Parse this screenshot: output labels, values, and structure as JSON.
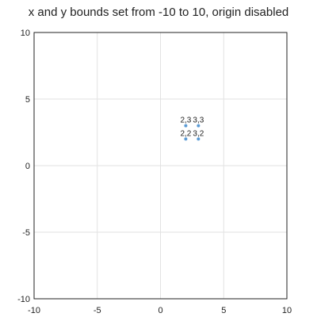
{
  "chart_data": {
    "type": "scatter",
    "title": "x and y bounds set from -10 to 10, origin disabled",
    "xlabel": "",
    "ylabel": "",
    "xlim": [
      -10,
      10
    ],
    "ylim": [
      -10,
      10
    ],
    "x_ticks": [
      -10,
      -5,
      0,
      5,
      10
    ],
    "y_ticks": [
      -10,
      -5,
      0,
      5,
      10
    ],
    "grid": true,
    "origin_axes": false,
    "point_color": "#5b9bd5",
    "points": [
      {
        "x": 2,
        "y": 2,
        "label": "2,2"
      },
      {
        "x": 3,
        "y": 2,
        "label": "3,2"
      },
      {
        "x": 2,
        "y": 3,
        "label": "2,3"
      },
      {
        "x": 3,
        "y": 3,
        "label": "3,3"
      }
    ]
  }
}
